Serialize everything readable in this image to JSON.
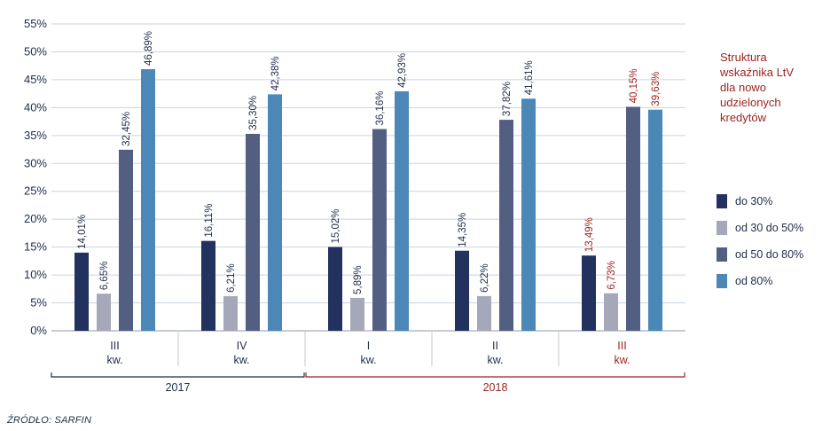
{
  "legend": {
    "title_lines": [
      "Struktura",
      "wskaźnika LtV",
      "dla nowo",
      "udzielonych",
      "kredytów"
    ],
    "items": [
      {
        "label": "do 30%",
        "color": "#22315e"
      },
      {
        "label": "od 30 do 50%",
        "color": "#a5a8b8"
      },
      {
        "label": "od 50 do 80%",
        "color": "#525e82"
      },
      {
        "label": "od 80%",
        "color": "#4b88b8"
      }
    ]
  },
  "source": "ŹRÓDŁO: SARFIN",
  "colors": {
    "highlight": "#9b2520",
    "text": "#1f2d4a",
    "grid": "#c9d3e1"
  },
  "chart_data": {
    "type": "bar",
    "ylim": [
      0,
      55
    ],
    "ytick_labels": [
      "0%",
      "5%",
      "10%",
      "15%",
      "20%",
      "25%",
      "30%",
      "35%",
      "40%",
      "45%",
      "50%",
      "55%"
    ],
    "categories": [
      {
        "quarter": "III",
        "unit": "kw.",
        "year": "2017",
        "highlight": false
      },
      {
        "quarter": "IV",
        "unit": "kw.",
        "year": "2017",
        "highlight": false
      },
      {
        "quarter": "I",
        "unit": "kw.",
        "year": "2018",
        "highlight": false
      },
      {
        "quarter": "II",
        "unit": "kw.",
        "year": "2018",
        "highlight": false
      },
      {
        "quarter": "III",
        "unit": "kw.",
        "year": "2018",
        "highlight": true
      }
    ],
    "year_groups": [
      {
        "label": "2017",
        "start": 0,
        "end": 1,
        "color": "#1f2d4a"
      },
      {
        "label": "2018",
        "start": 2,
        "end": 4,
        "color": "#9b2520"
      }
    ],
    "series": [
      {
        "name": "do 30%",
        "color": "#22315e",
        "values": [
          14.01,
          16.11,
          15.02,
          14.35,
          13.49
        ],
        "labels": [
          "14,01%",
          "16,11%",
          "15,02%",
          "14,35%",
          "13,49%"
        ]
      },
      {
        "name": "od 30 do 50%",
        "color": "#a5a8b8",
        "values": [
          6.65,
          6.21,
          5.89,
          6.22,
          6.73
        ],
        "labels": [
          "6,65%",
          "6,21%",
          "5,89%",
          "6,22%",
          "6,73%"
        ]
      },
      {
        "name": "od 50 do 80%",
        "color": "#525e82",
        "values": [
          32.45,
          35.3,
          36.16,
          37.82,
          40.15
        ],
        "labels": [
          "32,45%",
          "35,30%",
          "36,16%",
          "37,82%",
          "40,15%"
        ]
      },
      {
        "name": "od 80%",
        "color": "#4b88b8",
        "values": [
          46.89,
          42.38,
          42.93,
          41.61,
          39.63
        ],
        "labels": [
          "46,89%",
          "42,38%",
          "42,93%",
          "41,61%",
          "39,63%"
        ]
      }
    ],
    "grid": true,
    "legend_position": "right"
  }
}
